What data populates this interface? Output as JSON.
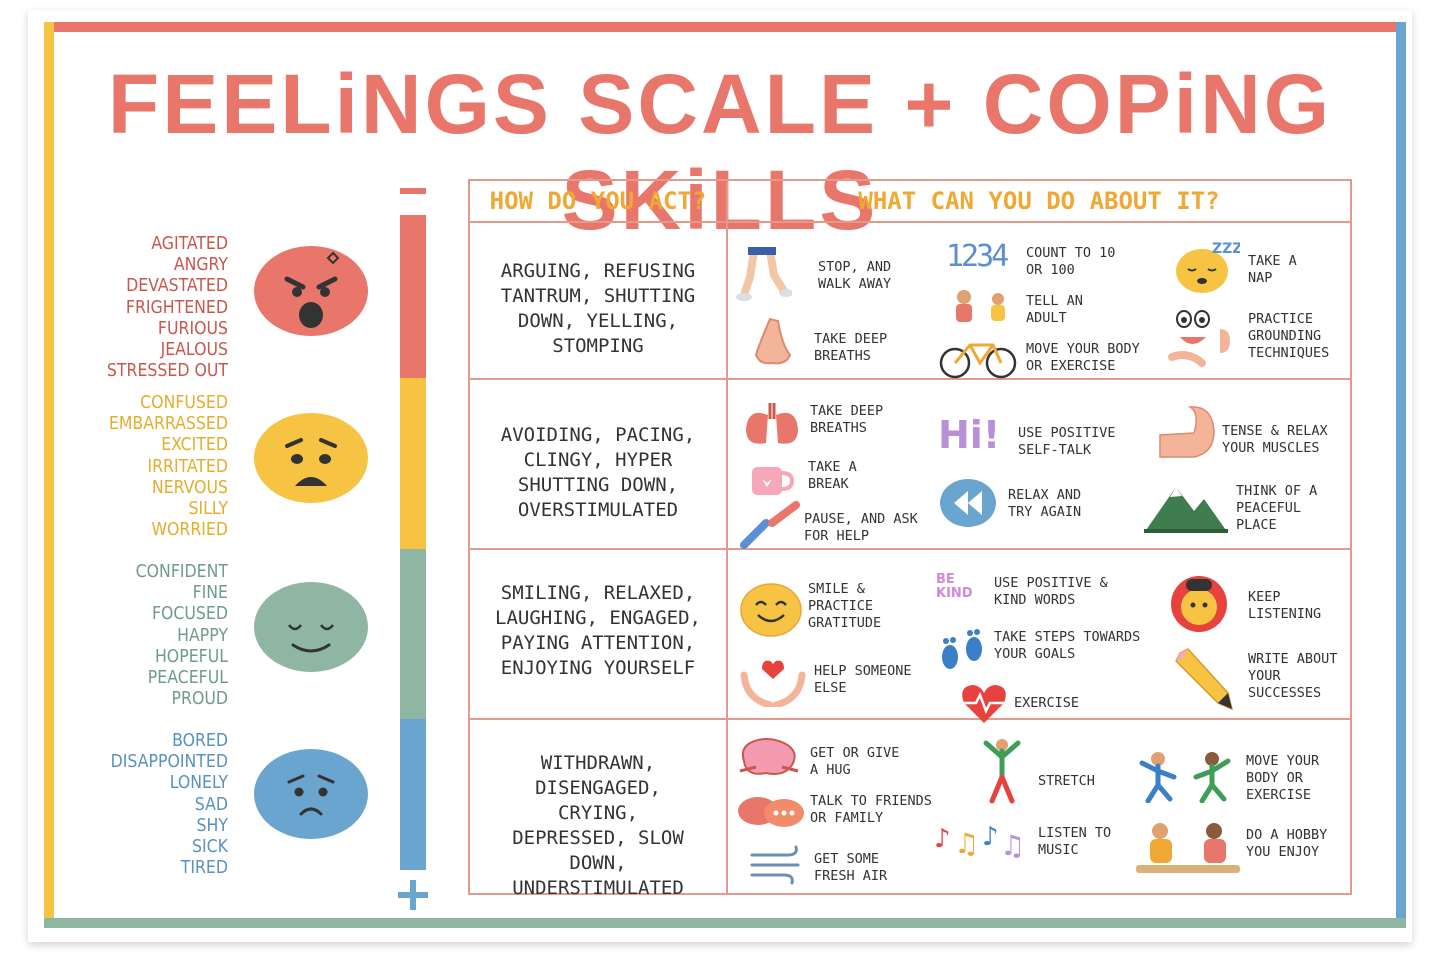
{
  "title": "FEELiNGS SCALE + COPiNG SKiLLS",
  "colors": {
    "red": "#e8766a",
    "yellow": "#f6c343",
    "green": "#8fb5a3",
    "blue": "#6aa5d0",
    "border": "#e29a8e",
    "header": "#f0a834"
  },
  "scale": {
    "minus": "−",
    "plus": "+"
  },
  "table": {
    "header_act": "HOW DO YOU ACT?",
    "header_do": "WHAT CAN YOU DO ABOUT IT?"
  },
  "rows": [
    {
      "feelings": [
        "AGITATED",
        "ANGRY",
        "DEVASTATED",
        "FRIGHTENED",
        "FURIOUS",
        "JEALOUS",
        "STRESSED OUT"
      ],
      "face": "angry-face-icon",
      "act": "ARGUING, REFUSING TANTRUM, SHUTTING DOWN, YELLING, STOMPING",
      "skills": [
        "STOP, AND WALK AWAY",
        "TAKE DEEP BREATHS",
        "COUNT TO 10 OR 100",
        "TELL AN ADULT",
        "MOVE YOUR BODY OR EXERCISE",
        "TAKE A NAP",
        "PRACTICE GROUNDING TECHNIQUES"
      ]
    },
    {
      "feelings": [
        "CONFUSED",
        "EMBARRASSED",
        "EXCITED",
        "IRRITATED",
        "NERVOUS",
        "SILLY",
        "WORRIED"
      ],
      "face": "worried-face-icon",
      "act": "AVOIDING, PACING, CLINGY, HYPER SHUTTING DOWN, OVERSTIMULATED",
      "skills": [
        "TAKE DEEP BREATHS",
        "TAKE A BREAK",
        "PAUSE, AND ASK FOR HELP",
        "USE POSITIVE SELF-TALK",
        "RELAX AND TRY AGAIN",
        "TENSE & RELAX YOUR MUSCLES",
        "THINK OF A PEACEFUL PLACE"
      ]
    },
    {
      "feelings": [
        "CONFIDENT",
        "FINE",
        "FOCUSED",
        "HAPPY",
        "HOPEFUL",
        "PEACEFUL",
        "PROUD"
      ],
      "face": "calm-face-icon",
      "act": "SMILING, RELAXED, LAUGHING, ENGAGED, PAYING ATTENTION, ENJOYING YOURSELF",
      "skills": [
        "SMILE & PRACTICE GRATITUDE",
        "HELP SOMEONE ELSE",
        "USE POSITIVE & KIND WORDS",
        "TAKE STEPS TOWARDS YOUR GOALS",
        "EXERCISE",
        "KEEP LISTENING",
        "WRITE ABOUT YOUR SUCCESSES"
      ]
    },
    {
      "feelings": [
        "BORED",
        "DISAPPOINTED",
        "LONELY",
        "SAD",
        "SHY",
        "SICK",
        "TIRED"
      ],
      "face": "sad-face-icon",
      "act": "WITHDRAWN, DISENGAGED, CRYING, DEPRESSED, SLOW DOWN, UNDERSTIMULATED",
      "skills": [
        "GET OR GIVE A HUG",
        "TALK TO FRIENDS OR FAMILY",
        "GET SOME FRESH AIR",
        "STRETCH",
        "LISTEN TO MUSIC",
        "MOVE YOUR BODY OR EXERCISE",
        "DO A HOBBY YOU ENJOY"
      ]
    }
  ],
  "icon_text": {
    "count": "1234",
    "nap": "ZZZ",
    "hi": "Hi!",
    "kind": "BE KIND"
  }
}
